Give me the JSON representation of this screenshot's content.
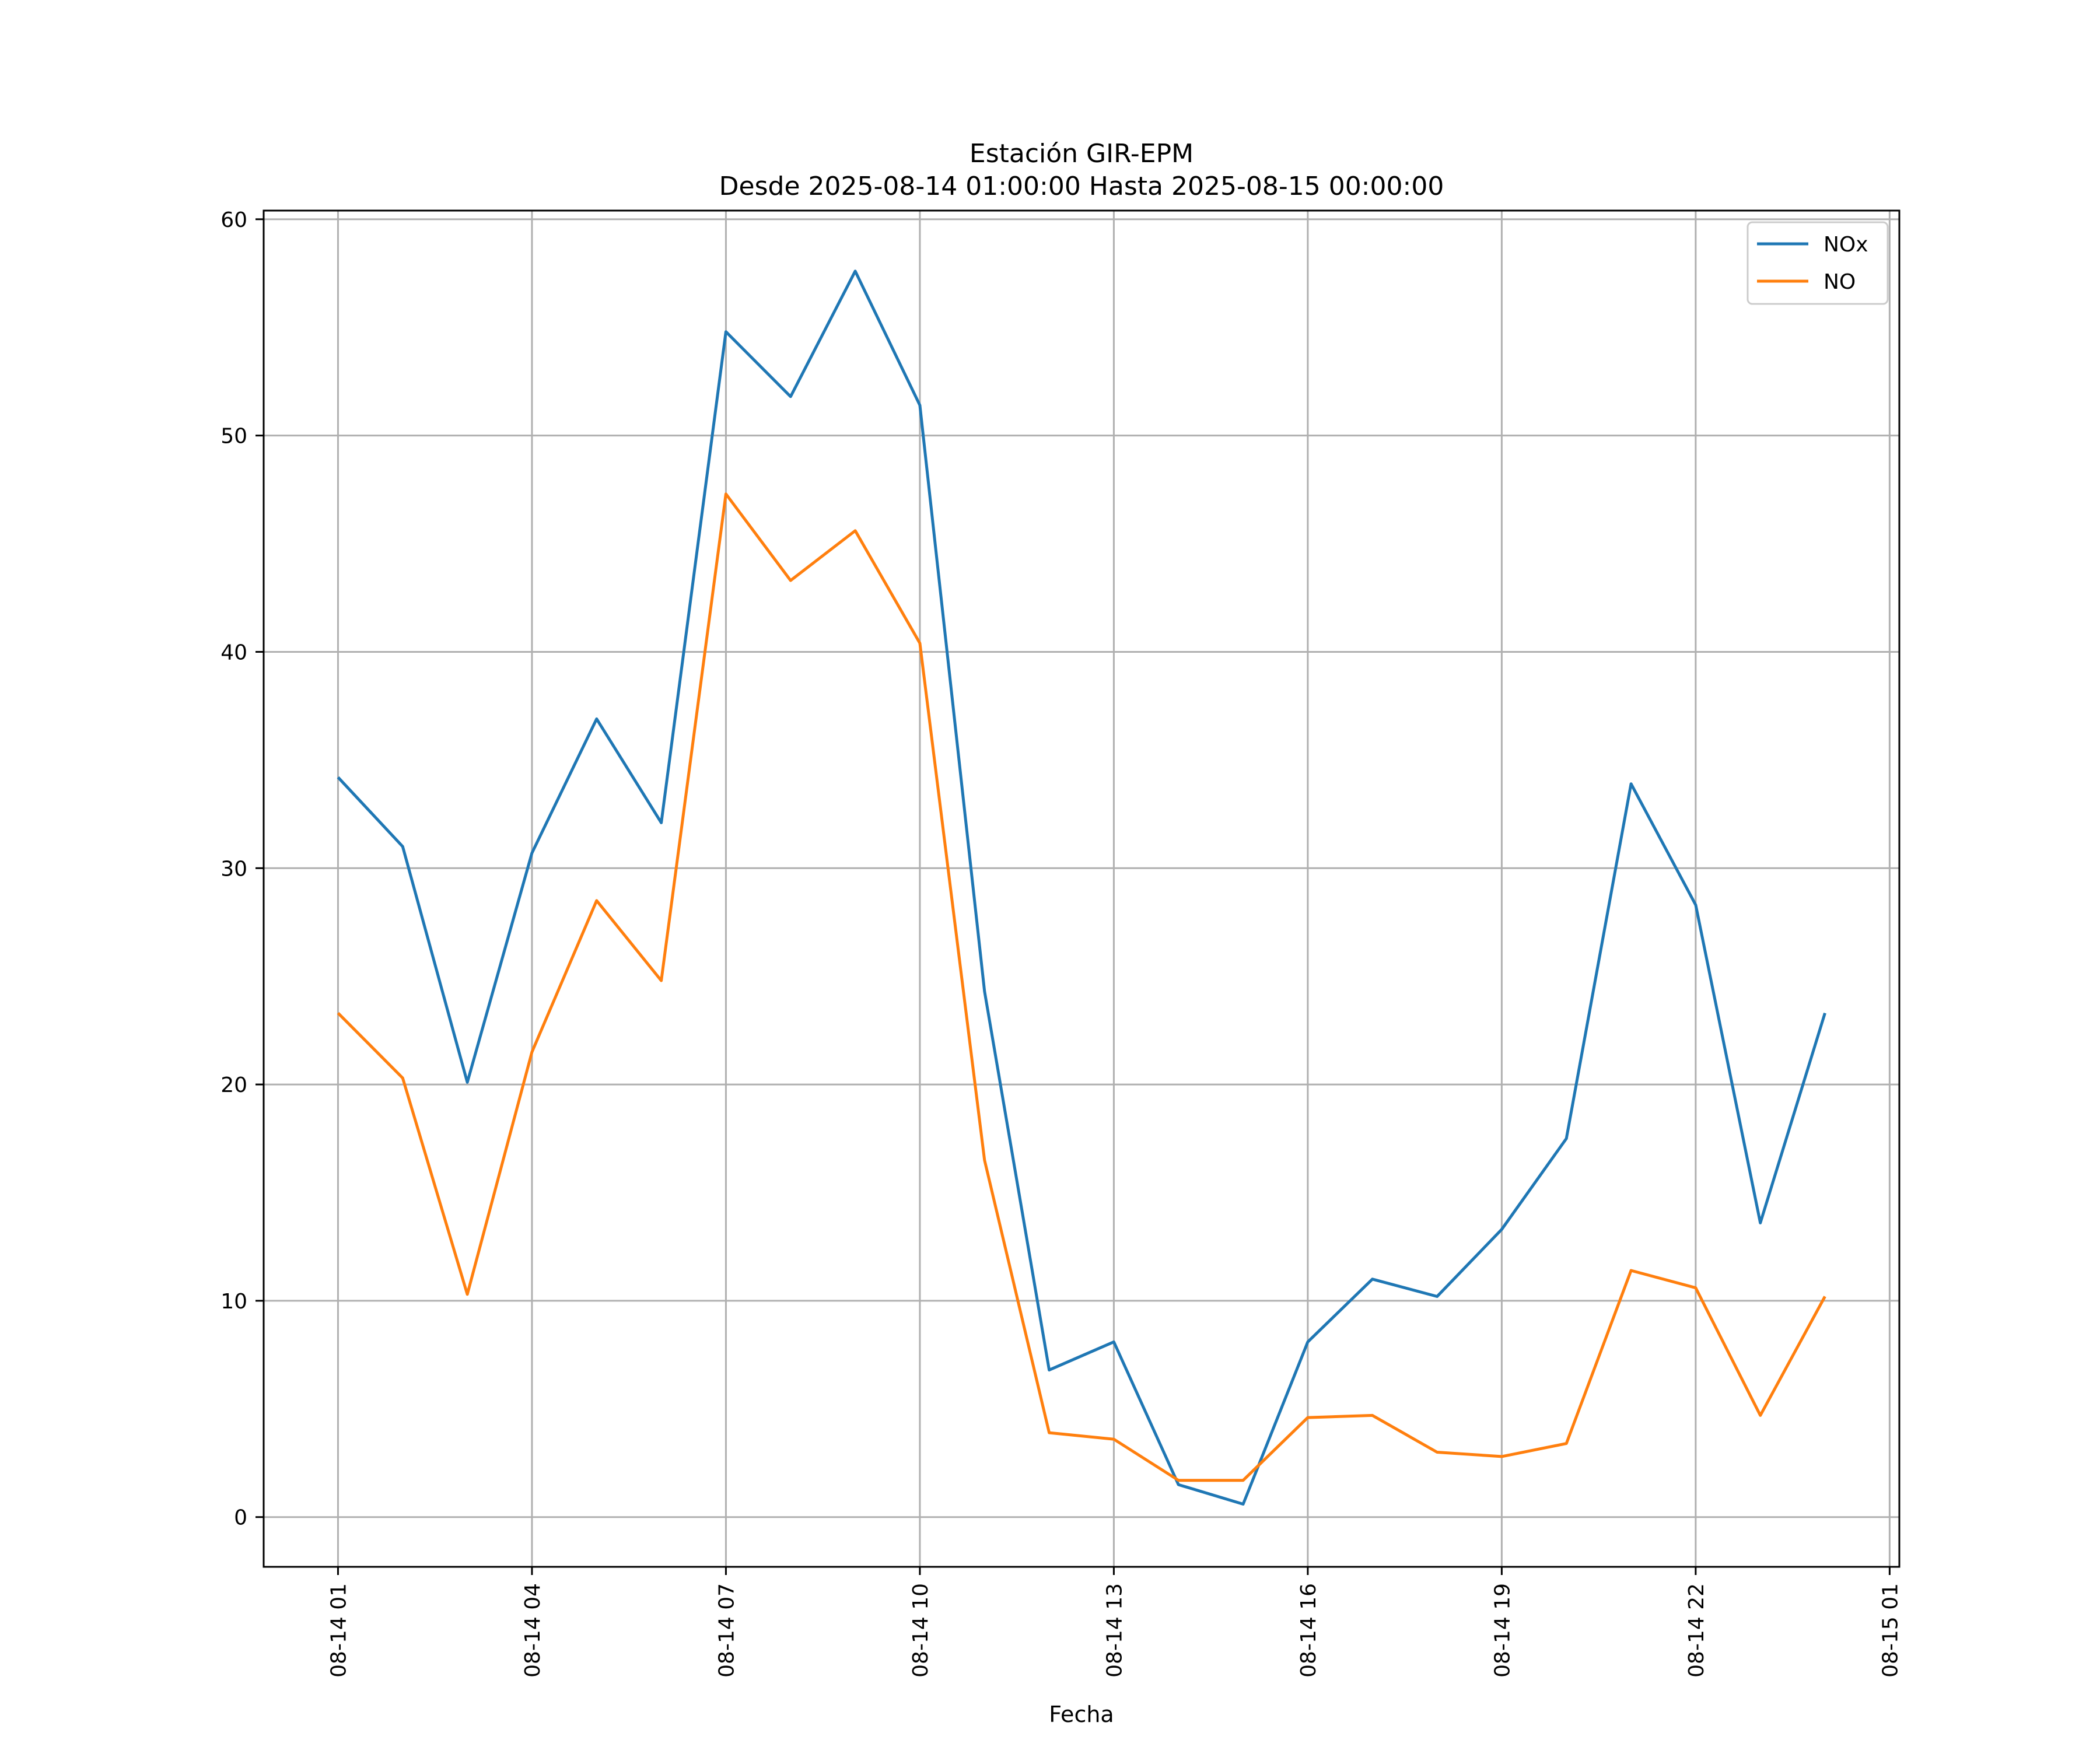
{
  "chart_data": {
    "type": "line",
    "title": "Estación GIR-EPM",
    "subtitle": "Desde 2025-08-14 01:00:00 Hasta 2025-08-15 00:00:00",
    "xlabel": "Fecha",
    "ylabel": "",
    "x": [
      "2025-08-14 01:00",
      "2025-08-14 02:00",
      "2025-08-14 03:00",
      "2025-08-14 04:00",
      "2025-08-14 05:00",
      "2025-08-14 06:00",
      "2025-08-14 07:00",
      "2025-08-14 08:00",
      "2025-08-14 09:00",
      "2025-08-14 10:00",
      "2025-08-14 11:00",
      "2025-08-14 12:00",
      "2025-08-14 13:00",
      "2025-08-14 14:00",
      "2025-08-14 15:00",
      "2025-08-14 16:00",
      "2025-08-14 17:00",
      "2025-08-14 18:00",
      "2025-08-14 19:00",
      "2025-08-14 20:00",
      "2025-08-14 21:00",
      "2025-08-14 22:00",
      "2025-08-14 23:00",
      "2025-08-15 00:00"
    ],
    "xlim": [
      "2025-08-13 23:51",
      "2025-08-15 01:09"
    ],
    "ylim": [
      -2.3,
      60.4
    ],
    "x_ticks": [
      "08-14 01",
      "08-14 04",
      "08-14 07",
      "08-14 10",
      "08-14 13",
      "08-14 16",
      "08-14 19",
      "08-14 22",
      "08-15 01"
    ],
    "x_tick_values": [
      "2025-08-14 01:00",
      "2025-08-14 04:00",
      "2025-08-14 07:00",
      "2025-08-14 10:00",
      "2025-08-14 13:00",
      "2025-08-14 16:00",
      "2025-08-14 19:00",
      "2025-08-14 22:00",
      "2025-08-15 01:00"
    ],
    "y_ticks": [
      "0",
      "10",
      "20",
      "30",
      "40",
      "50",
      "60"
    ],
    "y_tick_values": [
      0,
      10,
      20,
      30,
      40,
      50,
      60
    ],
    "grid": true,
    "legend_position": "top-right",
    "series": [
      {
        "name": "NOx",
        "color": "#1f77b4",
        "values": [
          34.2,
          31.0,
          20.1,
          30.7,
          36.9,
          32.1,
          54.8,
          51.8,
          57.6,
          51.4,
          24.3,
          6.8,
          8.1,
          1.5,
          0.6,
          8.1,
          11.0,
          10.2,
          13.3,
          17.5,
          33.9,
          28.3,
          13.6,
          23.3
        ]
      },
      {
        "name": "NO",
        "color": "#ff7f0e",
        "values": [
          23.3,
          20.3,
          10.3,
          21.5,
          28.5,
          24.8,
          47.3,
          43.3,
          45.6,
          40.4,
          16.5,
          3.9,
          3.6,
          1.7,
          1.7,
          4.6,
          4.7,
          3.0,
          2.8,
          3.4,
          11.4,
          10.6,
          4.7,
          10.2
        ]
      }
    ]
  }
}
